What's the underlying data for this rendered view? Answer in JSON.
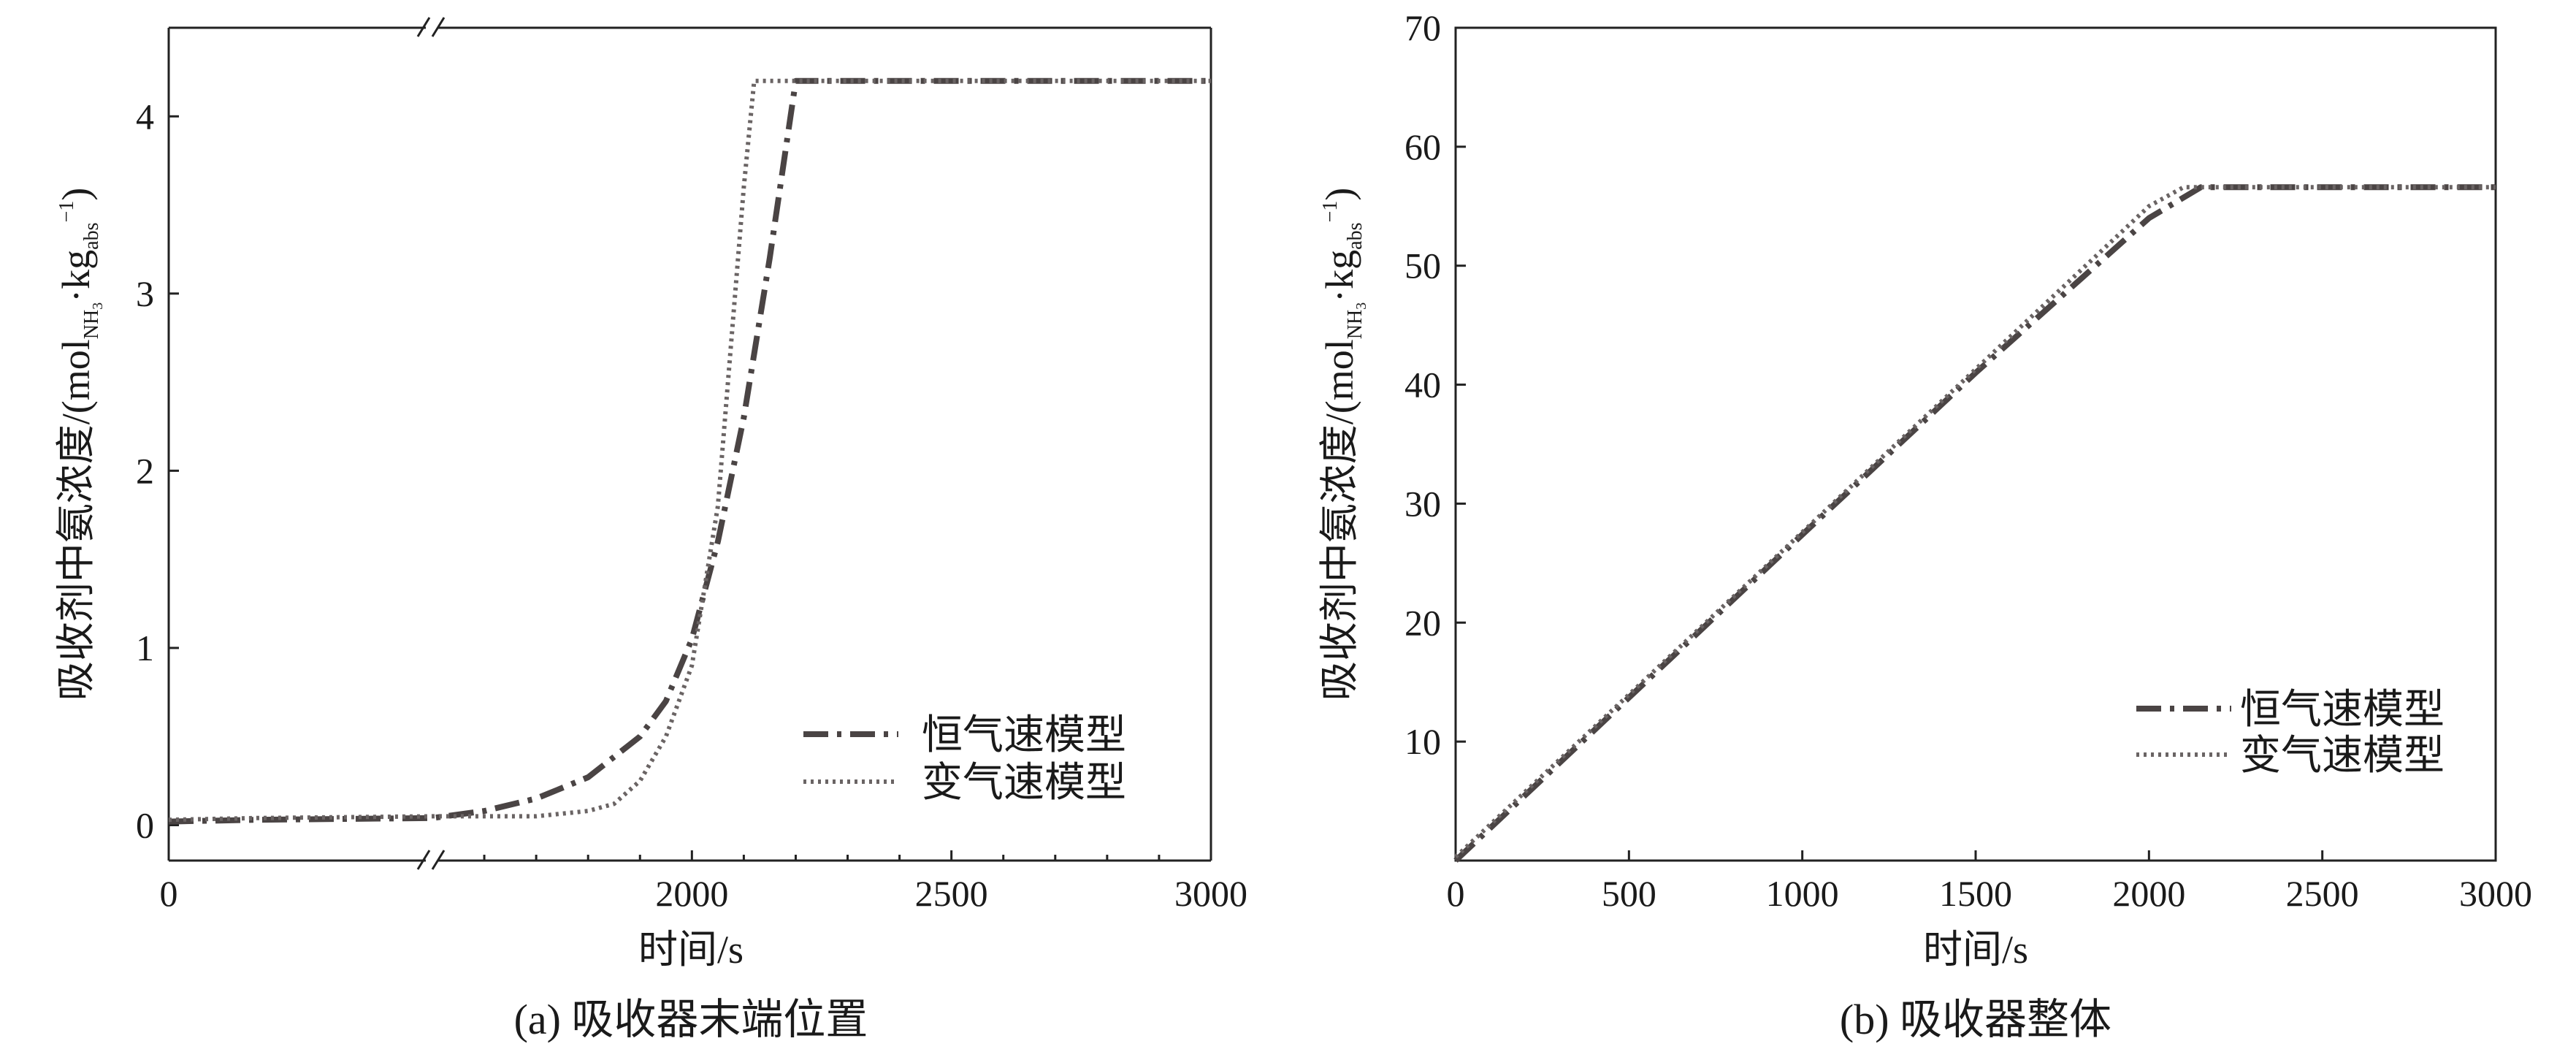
{
  "chart_data": [
    {
      "type": "line",
      "caption": "(a) 吸收器末端位置",
      "xlabel": "时间/s",
      "ylabel": "吸收剂中氨浓度/(mol",
      "ylabel_sub1": "NH",
      "ylabel_sub1_sub": "3",
      "ylabel_mid": "·kg",
      "ylabel_sub2": "abs",
      "ylabel_sup2": "−1",
      "ylabel_end": ")",
      "xlim": [
        0,
        3000
      ],
      "ylim": [
        -0.2,
        4.5
      ],
      "x_axis_break": true,
      "xticks": [
        "0",
        "2000",
        "2500",
        "3000"
      ],
      "yticks": [
        0,
        1,
        2,
        3,
        4
      ],
      "legend_position": "bottom-right",
      "grid": false,
      "series": [
        {
          "name": "恒气速模型",
          "style": "dashdot",
          "points": [
            [
              0,
              0.02
            ],
            [
              500,
              0.03
            ],
            [
              1500,
              0.04
            ],
            [
              1600,
              0.08
            ],
            [
              1700,
              0.15
            ],
            [
              1800,
              0.27
            ],
            [
              1900,
              0.5
            ],
            [
              1950,
              0.7
            ],
            [
              2000,
              1.05
            ],
            [
              2050,
              1.6
            ],
            [
              2100,
              2.3
            ],
            [
              2150,
              3.2
            ],
            [
              2200,
              4.2
            ],
            [
              2500,
              4.2
            ],
            [
              3000,
              4.2
            ]
          ]
        },
        {
          "name": "变气速模型",
          "style": "dotted",
          "points": [
            [
              0,
              0.03
            ],
            [
              500,
              0.04
            ],
            [
              1500,
              0.05
            ],
            [
              1700,
              0.05
            ],
            [
              1800,
              0.08
            ],
            [
              1850,
              0.12
            ],
            [
              1900,
              0.25
            ],
            [
              1950,
              0.5
            ],
            [
              2000,
              0.9
            ],
            [
              2050,
              1.8
            ],
            [
              2100,
              3.6
            ],
            [
              2120,
              4.2
            ],
            [
              2500,
              4.2
            ],
            [
              3000,
              4.2
            ]
          ]
        }
      ]
    },
    {
      "type": "line",
      "caption": "(b) 吸收器整体",
      "xlabel": "时间/s",
      "ylabel": "吸收剂中氨浓度/(mol",
      "ylabel_sub1": "NH",
      "ylabel_sub1_sub": "3",
      "ylabel_mid": "·kg",
      "ylabel_sub2": "abs",
      "ylabel_sup2": "−1",
      "ylabel_end": ")",
      "xlim": [
        0,
        3000
      ],
      "ylim": [
        0,
        70
      ],
      "xticks": [
        0,
        500,
        1000,
        1500,
        2000,
        2500,
        3000
      ],
      "yticks": [
        10,
        20,
        30,
        40,
        50,
        60,
        70
      ],
      "legend_position": "bottom-right",
      "grid": false,
      "series": [
        {
          "name": "恒气速模型",
          "style": "dashdot",
          "points": [
            [
              0,
              0
            ],
            [
              1000,
              27.4
            ],
            [
              1500,
              41
            ],
            [
              2000,
              54
            ],
            [
              2150,
              56.6
            ],
            [
              3000,
              56.6
            ]
          ]
        },
        {
          "name": "变气速模型",
          "style": "dotted",
          "points": [
            [
              0,
              0.3
            ],
            [
              1000,
              27.6
            ],
            [
              1500,
              41.3
            ],
            [
              2000,
              55
            ],
            [
              2100,
              56.6
            ],
            [
              3000,
              56.6
            ]
          ]
        }
      ]
    }
  ]
}
